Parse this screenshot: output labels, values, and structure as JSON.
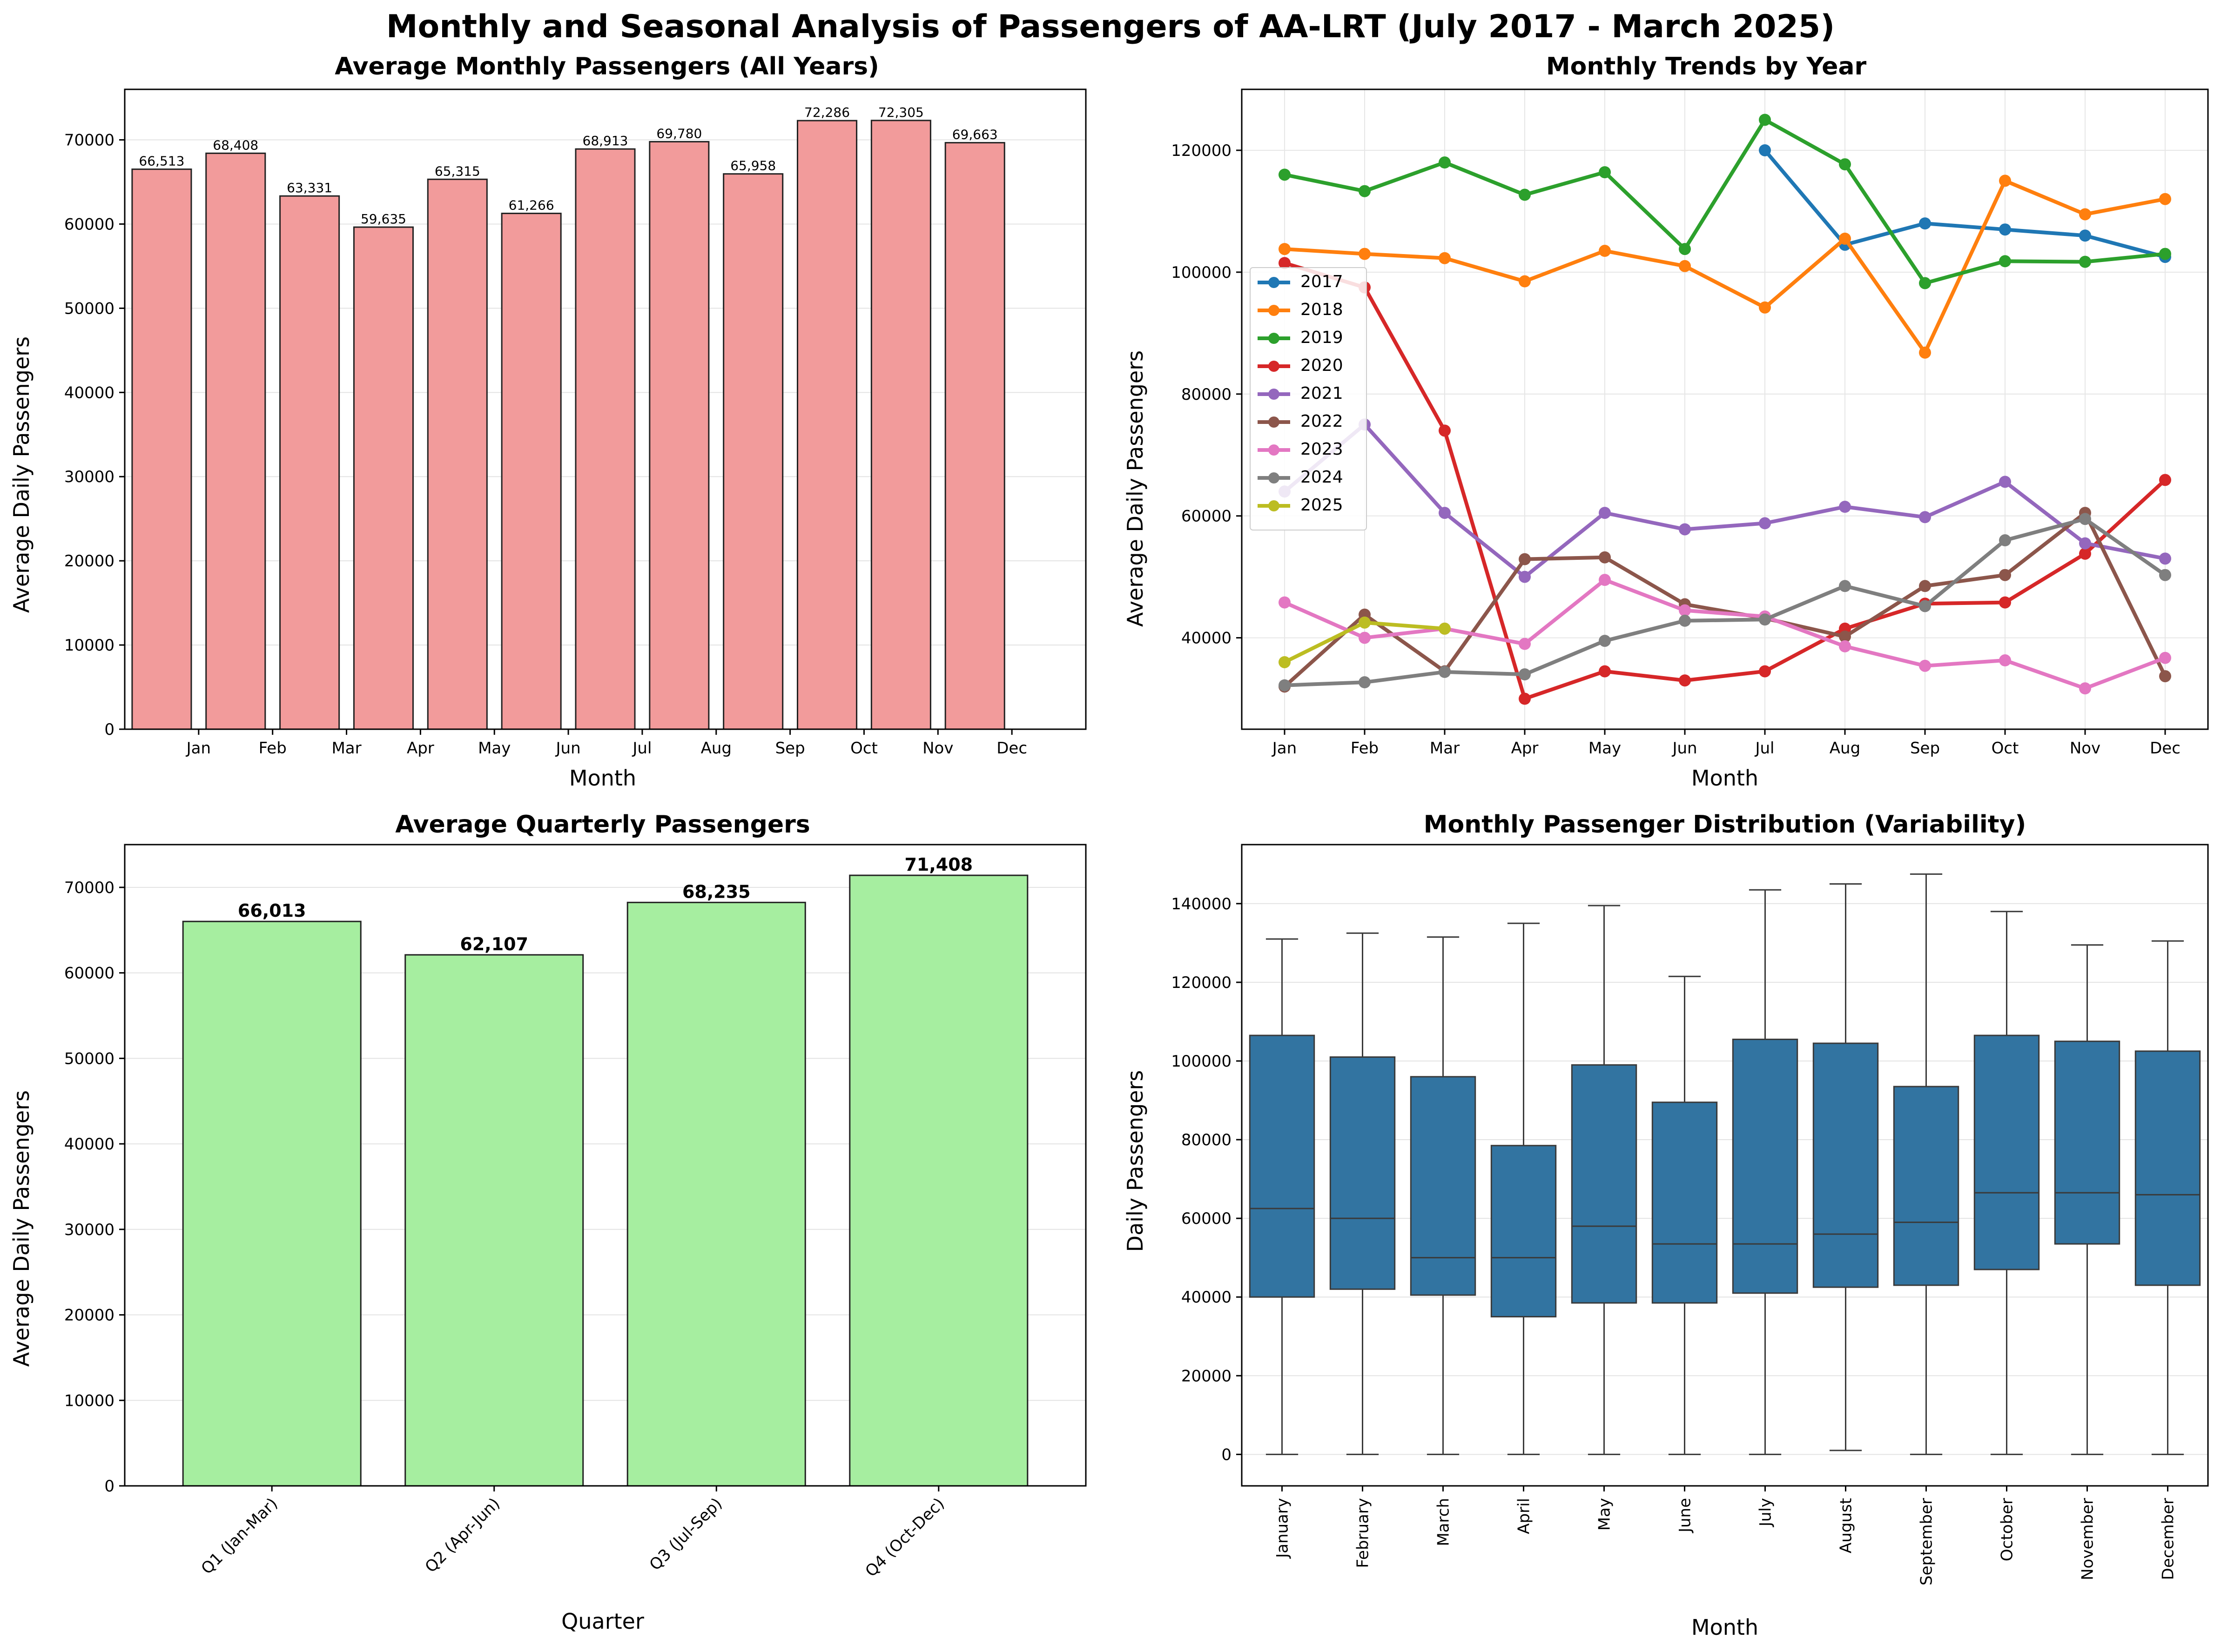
{
  "suptitle": "Monthly and Seasonal Analysis of Passengers of AA-LRT (July 2017 - March 2025)",
  "chart_data": [
    {
      "type": "bar",
      "title": "Average Monthly Passengers (All Years)",
      "xlabel": "Month",
      "ylabel": "Average Daily Passengers",
      "tick_labels": [
        "Jan",
        "Feb",
        "Mar",
        "Apr",
        "May",
        "Jun",
        "Jul",
        "Aug",
        "Sep",
        "Oct",
        "Nov",
        "Dec"
      ],
      "values": [
        66513,
        68408,
        63331,
        59635,
        65315,
        61266,
        68913,
        69780,
        65958,
        72286,
        72305,
        69663
      ],
      "data_labels": [
        "66,513",
        "68,408",
        "63,331",
        "59,635",
        "65,315",
        "61,266",
        "68,913",
        "69,780",
        "65,958",
        "72,286",
        "72,305",
        "69,663"
      ],
      "ylim": [
        0,
        76000
      ],
      "yticks": [
        0,
        10000,
        20000,
        30000,
        40000,
        50000,
        60000,
        70000
      ],
      "bar_color": "#f29b9b",
      "grid": "y"
    },
    {
      "type": "line",
      "title": "Monthly Trends by Year",
      "xlabel": "Month",
      "ylabel": "Average Daily Passengers",
      "categories": [
        "Jan",
        "Feb",
        "Mar",
        "Apr",
        "May",
        "Jun",
        "Jul",
        "Aug",
        "Sep",
        "Oct",
        "Nov",
        "Dec"
      ],
      "ylim": [
        25000,
        130000
      ],
      "yticks": [
        40000,
        60000,
        80000,
        100000,
        120000
      ],
      "grid": "both",
      "legend": "center-left",
      "series": [
        {
          "name": "2017",
          "color": "#1f77b4",
          "values": [
            null,
            null,
            null,
            null,
            null,
            null,
            120000,
            104500,
            108000,
            107000,
            106000,
            102500
          ]
        },
        {
          "name": "2018",
          "color": "#ff7f0e",
          "values": [
            103800,
            103000,
            102300,
            98500,
            103500,
            101000,
            94200,
            105500,
            86800,
            115000,
            109500,
            112000
          ]
        },
        {
          "name": "2019",
          "color": "#2ca02c",
          "values": [
            116000,
            113300,
            118000,
            112700,
            116400,
            103800,
            125000,
            117700,
            98200,
            101800,
            101700,
            103000
          ]
        },
        {
          "name": "2020",
          "color": "#d62728",
          "values": [
            101500,
            97500,
            74000,
            30000,
            34500,
            33000,
            34500,
            41500,
            45600,
            45800,
            53800,
            65900
          ]
        },
        {
          "name": "2021",
          "color": "#9467bd",
          "values": [
            64000,
            75000,
            60500,
            50000,
            60500,
            57800,
            58800,
            61500,
            59800,
            65600,
            55500,
            53000
          ]
        },
        {
          "name": "2022",
          "color": "#8c564b",
          "values": [
            32000,
            43800,
            34500,
            52900,
            53200,
            45500,
            43200,
            40200,
            48500,
            50300,
            60500,
            33700
          ]
        },
        {
          "name": "2023",
          "color": "#e377c2",
          "values": [
            45800,
            40000,
            41500,
            39000,
            49500,
            44500,
            43500,
            38600,
            35400,
            36300,
            31700,
            36700
          ]
        },
        {
          "name": "2024",
          "color": "#7f7f7f",
          "values": [
            32200,
            32700,
            34400,
            34000,
            39500,
            42800,
            43000,
            48500,
            45200,
            56000,
            59500,
            50300
          ]
        },
        {
          "name": "2025",
          "color": "#bcbd22",
          "values": [
            36000,
            42500,
            41500,
            null,
            null,
            null,
            null,
            null,
            null,
            null,
            null,
            null
          ]
        }
      ]
    },
    {
      "type": "bar",
      "title": "Average Quarterly Passengers",
      "xlabel": "Quarter",
      "ylabel": "Average Daily Passengers",
      "categories": [
        "Q1 (Jan-Mar)",
        "Q2 (Apr-Jun)",
        "Q3 (Jul-Sep)",
        "Q4 (Oct-Dec)"
      ],
      "values": [
        66013,
        62107,
        68235,
        71408
      ],
      "data_labels": [
        "66,013",
        "62,107",
        "68,235",
        "71,408"
      ],
      "ylim": [
        0,
        75000
      ],
      "yticks": [
        0,
        10000,
        20000,
        30000,
        40000,
        50000,
        60000,
        70000
      ],
      "bar_color": "#a6eea0",
      "grid": "y"
    },
    {
      "type": "boxplot",
      "title": "Monthly Passenger Distribution (Variability)",
      "xlabel": "Month",
      "ylabel": "Daily Passengers",
      "categories": [
        "January",
        "February",
        "March",
        "April",
        "May",
        "June",
        "July",
        "August",
        "September",
        "October",
        "November",
        "December"
      ],
      "ylim": [
        -8000,
        155000
      ],
      "yticks": [
        0,
        20000,
        40000,
        60000,
        80000,
        100000,
        120000,
        140000
      ],
      "box_color": "#3274a1",
      "grid": "y",
      "boxes": [
        {
          "min": 0,
          "q1": 40000,
          "median": 62500,
          "q3": 106500,
          "max": 131000
        },
        {
          "min": 0,
          "q1": 42000,
          "median": 60000,
          "q3": 101000,
          "max": 132500
        },
        {
          "min": 0,
          "q1": 40500,
          "median": 50000,
          "q3": 96000,
          "max": 131500
        },
        {
          "min": 0,
          "q1": 35000,
          "median": 50000,
          "q3": 78500,
          "max": 135000
        },
        {
          "min": 0,
          "q1": 38500,
          "median": 58000,
          "q3": 99000,
          "max": 139500
        },
        {
          "min": 0,
          "q1": 38500,
          "median": 53500,
          "q3": 89500,
          "max": 121500
        },
        {
          "min": 0,
          "q1": 41000,
          "median": 53500,
          "q3": 105500,
          "max": 143500
        },
        {
          "min": 1000,
          "q1": 42500,
          "median": 56000,
          "q3": 104500,
          "max": 145000
        },
        {
          "min": 0,
          "q1": 43000,
          "median": 59000,
          "q3": 93500,
          "max": 147500
        },
        {
          "min": 0,
          "q1": 47000,
          "median": 66500,
          "q3": 106500,
          "max": 138000
        },
        {
          "min": 0,
          "q1": 53500,
          "median": 66500,
          "q3": 105000,
          "max": 129500
        },
        {
          "min": 0,
          "q1": 43000,
          "median": 66000,
          "q3": 102500,
          "max": 130500
        }
      ]
    }
  ]
}
